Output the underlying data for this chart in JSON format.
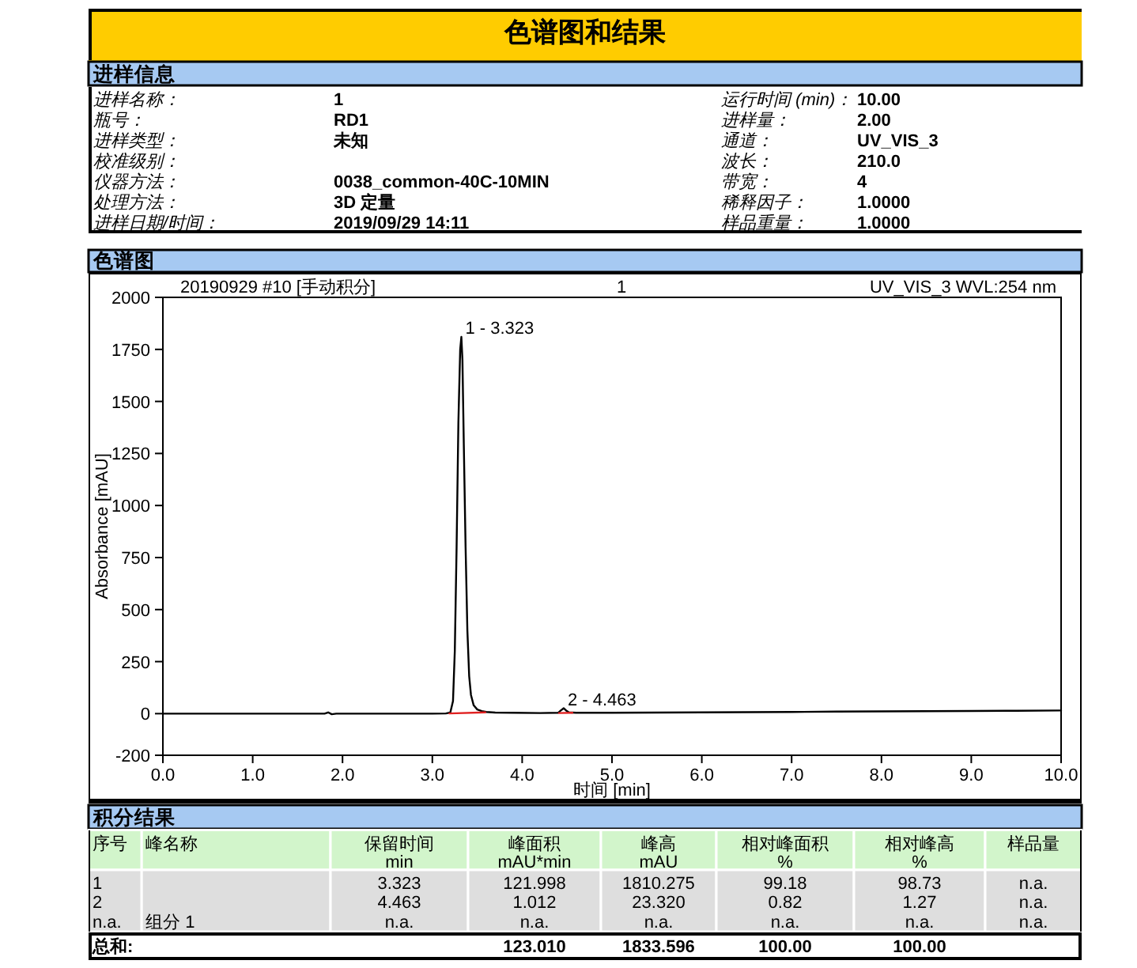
{
  "chart_data": {
    "type": "line",
    "title": "色谱图和结果",
    "xlabel": "时间 [min]",
    "ylabel": "Absorbance [mAU]",
    "xlim": [
      0,
      10
    ],
    "ylim": [
      -200,
      2000
    ],
    "xticks": [
      {
        "value": 0,
        "label": "0.0"
      },
      {
        "value": 1,
        "label": "1.0"
      },
      {
        "value": 2,
        "label": "2.0"
      },
      {
        "value": 3,
        "label": "3.0"
      },
      {
        "value": 4,
        "label": "4.0"
      },
      {
        "value": 5,
        "label": "5.0"
      },
      {
        "value": 6,
        "label": "6.0"
      },
      {
        "value": 7,
        "label": "7.0"
      },
      {
        "value": 8,
        "label": "8.0"
      },
      {
        "value": 9,
        "label": "9.0"
      },
      {
        "value": 10,
        "label": "10.0"
      }
    ],
    "yticks": [
      -200,
      0,
      250,
      500,
      750,
      1000,
      1250,
      1500,
      1750,
      2000
    ],
    "series": [
      {
        "color": "#000000",
        "x": [
          0,
          0.5,
          1.0,
          1.5,
          1.8,
          1.84,
          1.88,
          1.93,
          2.0,
          2.5,
          3.0,
          3.15,
          3.2,
          3.23,
          3.25,
          3.27,
          3.29,
          3.31,
          3.323,
          3.335,
          3.35,
          3.37,
          3.39,
          3.41,
          3.43,
          3.46,
          3.5,
          3.55,
          3.6,
          3.7,
          3.9,
          4.2,
          4.4,
          4.43,
          4.463,
          4.49,
          4.52,
          4.6,
          5.0,
          5.5,
          6.0,
          6.5,
          7.0,
          7.5,
          8.0,
          8.5,
          9.0,
          9.5,
          10.0
        ],
        "values": [
          0,
          0,
          0,
          0,
          0,
          6,
          -3,
          0,
          0,
          0,
          0,
          1,
          5,
          60,
          300,
          800,
          1400,
          1750,
          1810,
          1700,
          1300,
          800,
          400,
          180,
          90,
          40,
          20,
          12,
          8,
          5,
          4,
          3,
          4,
          15,
          26,
          15,
          6,
          4,
          4,
          5,
          6,
          7,
          8,
          10,
          11,
          12,
          13,
          14,
          15
        ]
      },
      {
        "color": "#e02020",
        "x": [
          3.19,
          3.59
        ],
        "values": [
          1,
          6
        ]
      },
      {
        "color": "#e02020",
        "x": [
          4.41,
          4.56
        ],
        "values": [
          3,
          4
        ]
      }
    ],
    "annotations": [
      "进样信息",
      "进样名称：",
      "1",
      "运行时间 (min)：",
      "10.00",
      "瓶号：",
      "RD1",
      "进样量：",
      "2.00",
      "进样类型：",
      "未知",
      "通道：",
      "UV_VIS_3",
      "校准级别：",
      "波长：",
      "210.0",
      "仪器方法：",
      "0038_common-40C-10MIN",
      "带宽：",
      "4",
      "处理方法：",
      "3D 定量",
      "稀释因子：",
      "1.0000",
      "进样日期/时间：",
      "2019/09/29 14:11",
      "样品重量：",
      "1.0000",
      "色谱图",
      "20190929 #10 [手动积分]",
      "1",
      "UV_VIS_3 WVL:254 nm",
      {
        "text": "1 - 3.323",
        "x": 3.323,
        "y": 1810
      },
      {
        "text": "2 - 4.463",
        "x": 4.463,
        "y": 26
      },
      "积分结果",
      "序号",
      "峰名称",
      "保留时间",
      "峰面积",
      "峰高",
      "相对峰面积",
      "相对峰高",
      "样品量",
      "min",
      "mAU*min",
      "mAU",
      "%",
      "%",
      "1",
      "3.323",
      "121.998",
      "1810.275",
      "99.18",
      "98.73",
      "n.a.",
      "2",
      "4.463",
      "1.012",
      "23.320",
      "0.82",
      "1.27",
      "n.a.",
      "n.a.",
      "组分 1",
      "n.a.",
      "n.a.",
      "n.a.",
      "n.a.",
      "n.a.",
      "n.a.",
      "总和:",
      "123.010",
      "1833.596",
      "100.00",
      "100.00"
    ]
  }
}
